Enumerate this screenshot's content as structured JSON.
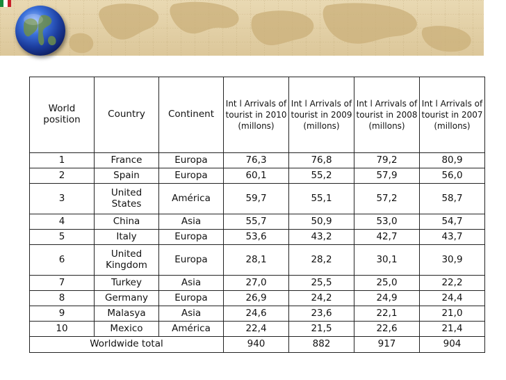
{
  "table": {
    "headers": [
      "World position",
      "Country",
      "Continent",
      "Int l Arrivals of tourist in 2010 (millons)",
      "Int l Arrivals of tourist in 2009 (millons)",
      "Int l Arrivals of tourist in 2008 (millons)",
      "Int l Arrivals of tourist in 2007 (millons)"
    ],
    "rows": [
      [
        "1",
        "France",
        "Europa",
        "76,3",
        "76,8",
        "79,2",
        "80,9"
      ],
      [
        "2",
        "Spain",
        "Europa",
        "60,1",
        "55,2",
        "57,9",
        "56,0"
      ],
      [
        "3",
        "United States",
        "América",
        "59,7",
        "55,1",
        "57,2",
        "58,7"
      ],
      [
        "4",
        "China",
        "Asia",
        "55,7",
        "50,9",
        "53,0",
        "54,7"
      ],
      [
        "5",
        "Italy",
        "Europa",
        "53,6",
        "43,2",
        "42,7",
        "43,7"
      ],
      [
        "6",
        "United Kingdom",
        "Europa",
        "28,1",
        "28,2",
        "30,1",
        "30,9"
      ],
      [
        "7",
        "Turkey",
        "Asia",
        "27,0",
        "25,5",
        "25,0",
        "22,2"
      ],
      [
        "8",
        "Germany",
        "Europa",
        "26,9",
        "24,2",
        "24,9",
        "24,4"
      ],
      [
        "9",
        "Malasya",
        "Asia",
        "24,6",
        "23,6",
        "22,1",
        "21,0"
      ],
      [
        "10",
        "Mexico",
        "América",
        "22,4",
        "21,5",
        "22,6",
        "21,4"
      ]
    ],
    "total": {
      "label": "Worldwide total",
      "values": [
        "940",
        "882",
        "917",
        "904"
      ]
    }
  },
  "colors": {
    "banner": "#dcc79a",
    "flag": [
      "#1a8a3a",
      "#ffffff",
      "#c8202a"
    ]
  },
  "icons": {
    "globe": "globe-icon",
    "flag": "mexico-flag-icon"
  }
}
